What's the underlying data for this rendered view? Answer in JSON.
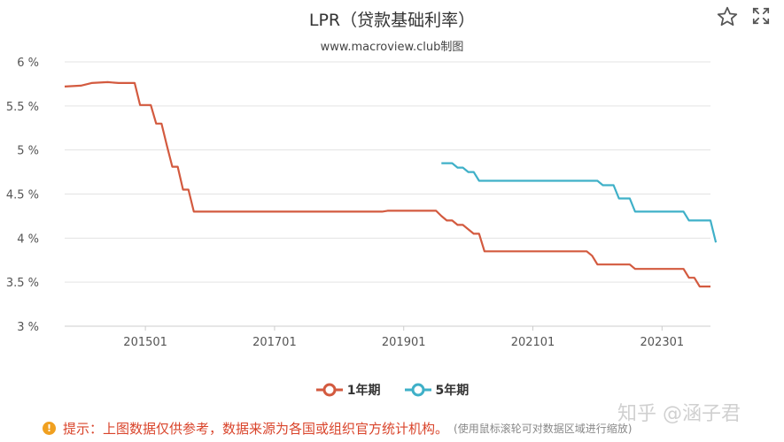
{
  "header": {
    "title": "LPR（贷款基础利率）",
    "subtitle": "www.macroview.club制图"
  },
  "icons": {
    "favorite": "star-icon",
    "fullscreen": "expand-icon",
    "info": "info-icon"
  },
  "colors": {
    "series_1y": "#d35a3f",
    "series_5y": "#3fb0c8",
    "grid": "#e3e3e3",
    "axis": "#cccccc"
  },
  "chart_data": {
    "type": "line",
    "title": "LPR（贷款基础利率）",
    "subtitle": "www.macroview.club制图",
    "x_range": [
      "2013-10",
      "2023-10"
    ],
    "x_ticks": [
      "201501",
      "201701",
      "201901",
      "202101",
      "202301"
    ],
    "y_ticks": [
      "3 %",
      "3.5 %",
      "4 %",
      "4.5 %",
      "5 %",
      "5.5 %",
      "6 %"
    ],
    "ylim": [
      3,
      6
    ],
    "grid": true,
    "legend_position": "bottom-center",
    "series": [
      {
        "name": "1年期",
        "color": "#d35a3f",
        "points": [
          [
            "2013-10",
            5.72
          ],
          [
            "2014-01",
            5.73
          ],
          [
            "2014-03",
            5.76
          ],
          [
            "2014-06",
            5.77
          ],
          [
            "2014-08",
            5.76
          ],
          [
            "2014-11",
            5.76
          ],
          [
            "2014-12",
            5.51
          ],
          [
            "2015-02",
            5.51
          ],
          [
            "2015-03",
            5.3
          ],
          [
            "2015-04",
            5.3
          ],
          [
            "2015-05",
            5.05
          ],
          [
            "2015-06",
            4.81
          ],
          [
            "2015-07",
            4.81
          ],
          [
            "2015-08",
            4.55
          ],
          [
            "2015-09",
            4.55
          ],
          [
            "2015-10",
            4.3
          ],
          [
            "2018-09",
            4.3
          ],
          [
            "2018-10",
            4.31
          ],
          [
            "2019-07",
            4.31
          ],
          [
            "2019-08",
            4.25
          ],
          [
            "2019-09",
            4.2
          ],
          [
            "2019-10",
            4.2
          ],
          [
            "2019-11",
            4.15
          ],
          [
            "2019-12",
            4.15
          ],
          [
            "2020-02",
            4.05
          ],
          [
            "2020-03",
            4.05
          ],
          [
            "2020-04",
            3.85
          ],
          [
            "2021-11",
            3.85
          ],
          [
            "2021-12",
            3.8
          ],
          [
            "2022-01",
            3.7
          ],
          [
            "2022-07",
            3.7
          ],
          [
            "2022-08",
            3.65
          ],
          [
            "2023-05",
            3.65
          ],
          [
            "2023-06",
            3.55
          ],
          [
            "2023-07",
            3.55
          ],
          [
            "2023-08",
            3.45
          ],
          [
            "2023-10",
            3.45
          ]
        ]
      },
      {
        "name": "5年期",
        "color": "#3fb0c8",
        "points": [
          [
            "2019-08",
            4.85
          ],
          [
            "2019-10",
            4.85
          ],
          [
            "2019-11",
            4.8
          ],
          [
            "2019-12",
            4.8
          ],
          [
            "2020-01",
            4.75
          ],
          [
            "2020-02",
            4.75
          ],
          [
            "2020-03",
            4.65
          ],
          [
            "2022-01",
            4.65
          ],
          [
            "2022-02",
            4.6
          ],
          [
            "2022-04",
            4.6
          ],
          [
            "2022-05",
            4.45
          ],
          [
            "2022-07",
            4.45
          ],
          [
            "2022-08",
            4.3
          ],
          [
            "2023-05",
            4.3
          ],
          [
            "2023-06",
            4.2
          ],
          [
            "2023-10",
            4.2
          ],
          [
            "2023-11",
            3.95
          ]
        ]
      }
    ]
  },
  "legend": {
    "item1": "1年期",
    "item2": "5年期"
  },
  "footer": {
    "notice": "提示：上图数据仅供参考，数据来源为各国或组织官方统计机构。",
    "hint": "(使用鼠标滚轮可对数据区域进行缩放)"
  },
  "watermark": "知乎 @涵子君"
}
